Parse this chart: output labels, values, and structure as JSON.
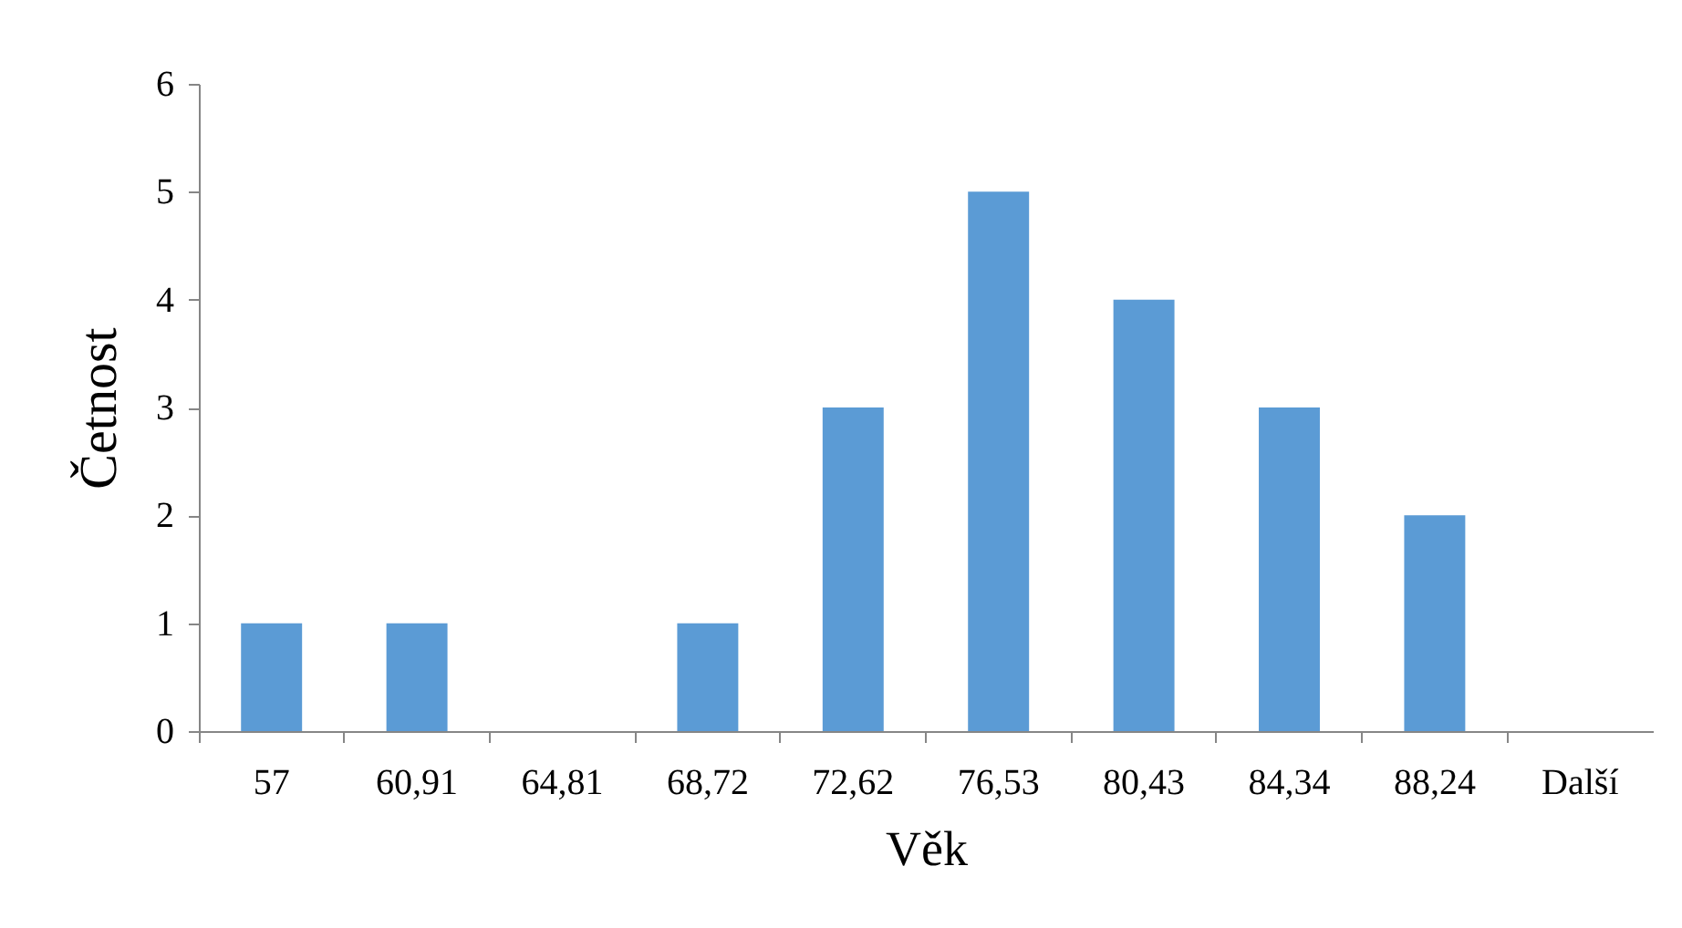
{
  "chart_data": {
    "type": "bar",
    "xlabel": "Věk",
    "ylabel": "Četnost",
    "categories": [
      "57",
      "60,91",
      "64,81",
      "68,72",
      "72,62",
      "76,53",
      "80,43",
      "84,34",
      "88,24",
      "Další"
    ],
    "values": [
      1,
      1,
      0,
      1,
      3,
      5,
      4,
      3,
      2,
      0
    ],
    "color": "#5b9bd5",
    "ylim": [
      0,
      6
    ],
    "yticks": [
      0,
      1,
      2,
      3,
      4,
      5,
      6
    ],
    "grid": false
  }
}
